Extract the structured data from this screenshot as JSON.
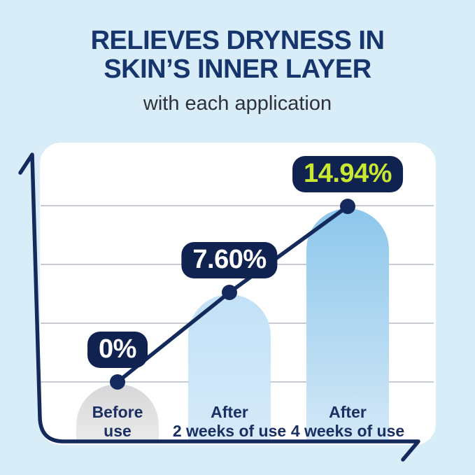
{
  "page": {
    "background": "#d9edf8",
    "title_line1": "RELIEVES DRYNESS IN",
    "title_line2": "SKIN’S INNER LAYER",
    "subtitle": "with each application"
  },
  "colors": {
    "title_navy": "#16356d",
    "subtitle": "#2e3138",
    "axis_navy": "#14295c",
    "pill_navy": "#10224f",
    "lime": "#c9e832",
    "gridline": "#c7cbd3",
    "panel": "#ffffff",
    "category_label": "#1b2f63"
  },
  "chart_data": {
    "type": "bar",
    "title": "RELIEVES DRYNESS IN SKIN’S INNER LAYER",
    "subtitle": "with each application",
    "categories": [
      "Before use",
      "After 2 weeks of use",
      "After 4 weeks of use"
    ],
    "category_lines": [
      [
        "Before",
        "use"
      ],
      [
        "After",
        "2 weeks of use"
      ],
      [
        "After",
        "4 weeks of use"
      ]
    ],
    "values": [
      0,
      7.6,
      14.94
    ],
    "value_labels": [
      "0%",
      "7.60%",
      "14.94%"
    ],
    "value_label_colors": [
      "#ffffff",
      "#ffffff",
      "#c9e832"
    ],
    "xlabel": "",
    "ylabel": "",
    "ylim": [
      0,
      15
    ],
    "grid_step": 5,
    "grid": "horizontal gridlines, no tick labels",
    "legend": "none",
    "overlay": "trend line with round point markers on bar tops, hand-drawn style axis arrows",
    "bar_colors": [
      {
        "top": "#d6d7d8",
        "bottom": "#ebebec"
      },
      {
        "top": "#c2e1f7",
        "bottom": "#d6eaf9"
      },
      {
        "top": "#8dc7eb",
        "bottom": "#d3e8f7"
      }
    ]
  }
}
